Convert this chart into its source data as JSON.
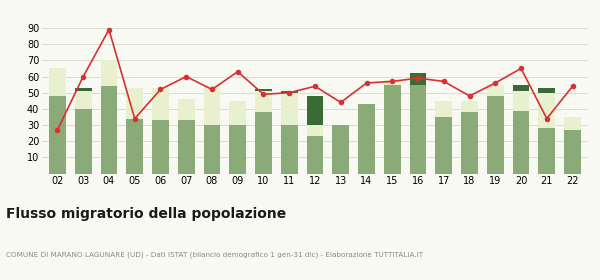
{
  "years": [
    "02",
    "03",
    "04",
    "05",
    "06",
    "07",
    "08",
    "09",
    "10",
    "11",
    "12",
    "13",
    "14",
    "15",
    "16",
    "17",
    "18",
    "19",
    "20",
    "21",
    "22"
  ],
  "iscritti_comuni": [
    48,
    40,
    54,
    34,
    33,
    33,
    30,
    30,
    38,
    30,
    23,
    30,
    43,
    55,
    55,
    35,
    38,
    48,
    39,
    28,
    27
  ],
  "iscritti_estero": [
    17,
    11,
    16,
    19,
    20,
    13,
    24,
    15,
    13,
    20,
    7,
    0,
    0,
    3,
    0,
    10,
    7,
    7,
    12,
    22,
    8
  ],
  "iscritti_altri": [
    0,
    2,
    0,
    0,
    0,
    0,
    0,
    0,
    1,
    1,
    18,
    0,
    0,
    0,
    7,
    0,
    0,
    0,
    4,
    3,
    0
  ],
  "cancellati": [
    27,
    60,
    89,
    34,
    52,
    60,
    52,
    63,
    49,
    50,
    54,
    44,
    56,
    57,
    59,
    57,
    48,
    56,
    65,
    34,
    54
  ],
  "color_comuni": "#8aab78",
  "color_estero": "#e8f0d0",
  "color_altri": "#3a6b35",
  "color_cancellati": "#d93030",
  "title": "Flusso migratorio della popolazione",
  "subtitle": "COMUNE DI MARANO LAGUNARE (UD) - Dati ISTAT (bilancio demografico 1 gen-31 dic) - Elaborazione TUTTITALIA.IT",
  "ylim": [
    0,
    90
  ],
  "yticks": [
    10,
    20,
    30,
    40,
    50,
    60,
    70,
    80,
    90
  ],
  "bg_color": "#f9f9f4",
  "grid_color": "#ddddcc"
}
